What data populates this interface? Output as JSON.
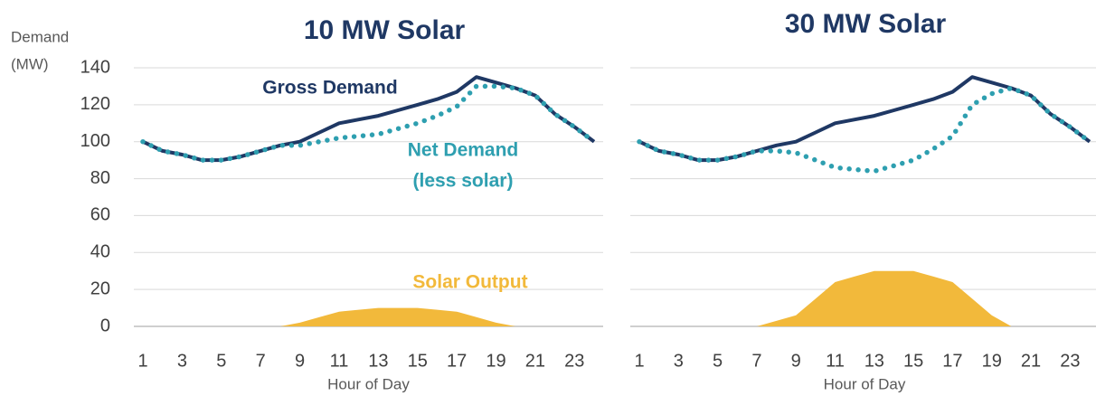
{
  "chart_data": [
    {
      "type": "line",
      "title": "10 MW Solar",
      "ylabel": [
        "Demand",
        "(MW)"
      ],
      "xlabel": "Hour of Day",
      "x": [
        1,
        2,
        3,
        4,
        5,
        6,
        7,
        8,
        9,
        10,
        11,
        12,
        13,
        14,
        15,
        16,
        17,
        18,
        19,
        20,
        21,
        22,
        23,
        24
      ],
      "xlim": [
        1,
        24
      ],
      "xticks": [
        1,
        3,
        5,
        7,
        9,
        11,
        13,
        15,
        17,
        19,
        21,
        23
      ],
      "ylim": [
        0,
        140
      ],
      "yticks": [
        0,
        20,
        40,
        60,
        80,
        100,
        120,
        140
      ],
      "ytick_labels": true,
      "grid": true,
      "series": [
        {
          "name": "Gross Demand",
          "color": "#1f3864",
          "style": "solid",
          "values": [
            100,
            95,
            93,
            90,
            90,
            92,
            95,
            98,
            100,
            105,
            110,
            112,
            114,
            117,
            120,
            123,
            127,
            135,
            132,
            129,
            125,
            115,
            108,
            100
          ]
        },
        {
          "name": "Net Demand",
          "color": "#2e9fb0",
          "style": "dotted",
          "values": [
            100,
            95,
            93,
            90,
            90,
            92,
            95,
            98,
            98,
            100,
            102,
            103,
            104,
            107,
            110,
            114,
            119,
            130,
            130,
            129,
            125,
            115,
            108,
            100
          ]
        },
        {
          "name": "Solar Output",
          "color": "#f2b93b",
          "style": "area",
          "values": [
            0,
            0,
            0,
            0,
            0,
            0,
            0,
            0,
            2,
            5,
            8,
            9,
            10,
            10,
            10,
            9,
            8,
            5,
            2,
            0,
            0,
            0,
            0,
            0
          ]
        }
      ],
      "annotations": [
        "(less solar)"
      ]
    },
    {
      "type": "line",
      "title": "30 MW Solar",
      "xlabel": "Hour of Day",
      "x": [
        1,
        2,
        3,
        4,
        5,
        6,
        7,
        8,
        9,
        10,
        11,
        12,
        13,
        14,
        15,
        16,
        17,
        18,
        19,
        20,
        21,
        22,
        23,
        24
      ],
      "xlim": [
        1,
        24
      ],
      "xticks": [
        1,
        3,
        5,
        7,
        9,
        11,
        13,
        15,
        17,
        19,
        21,
        23
      ],
      "ylim": [
        0,
        140
      ],
      "yticks": [
        0,
        20,
        40,
        60,
        80,
        100,
        120,
        140
      ],
      "ytick_labels": false,
      "grid": true,
      "series": [
        {
          "color": "#1f3864",
          "style": "solid",
          "values": [
            100,
            95,
            93,
            90,
            90,
            92,
            95,
            98,
            100,
            105,
            110,
            112,
            114,
            117,
            120,
            123,
            127,
            135,
            132,
            129,
            125,
            115,
            108,
            100
          ]
        },
        {
          "color": "#2e9fb0",
          "style": "dotted",
          "values": [
            100,
            95,
            93,
            90,
            90,
            92,
            95,
            95,
            94,
            90,
            86,
            85,
            84,
            87,
            90,
            96,
            103,
            120,
            126,
            129,
            125,
            115,
            108,
            100
          ]
        },
        {
          "color": "#f2b93b",
          "style": "area",
          "values": [
            0,
            0,
            0,
            0,
            0,
            0,
            0,
            3,
            6,
            15,
            24,
            27,
            30,
            30,
            30,
            27,
            24,
            15,
            6,
            0,
            0,
            0,
            0,
            0
          ]
        }
      ]
    }
  ]
}
